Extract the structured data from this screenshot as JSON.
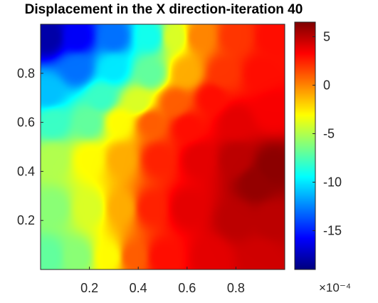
{
  "chart_data": {
    "type": "heatmap",
    "title": "Displacement in the X direction-iteration 40",
    "xlabel": "",
    "ylabel": "",
    "xlim": [
      0,
      1
    ],
    "ylim": [
      0,
      1
    ],
    "x_ticks": [
      "0.2",
      "0.4",
      "0.6",
      "0.8"
    ],
    "y_ticks": [
      "0.2",
      "0.4",
      "0.6",
      "0.8"
    ],
    "colorbar": {
      "colormap": "jet",
      "clim": [
        -19,
        6.5
      ],
      "scale_label": "×10⁻⁴",
      "ticks": [
        "5",
        "0",
        "-5",
        "-10",
        "-15"
      ]
    },
    "field_control_points": [
      {
        "x": 0.03,
        "y": 0.95,
        "v": -18
      },
      {
        "x": 0.15,
        "y": 0.95,
        "v": -16
      },
      {
        "x": 0.3,
        "y": 0.95,
        "v": -13
      },
      {
        "x": 0.45,
        "y": 0.95,
        "v": -9
      },
      {
        "x": 0.55,
        "y": 0.95,
        "v": -4
      },
      {
        "x": 0.65,
        "y": 0.95,
        "v": 0
      },
      {
        "x": 0.8,
        "y": 0.95,
        "v": 2
      },
      {
        "x": 0.95,
        "y": 0.95,
        "v": 3
      },
      {
        "x": 0.15,
        "y": 0.82,
        "v": -13
      },
      {
        "x": 0.3,
        "y": 0.82,
        "v": -10
      },
      {
        "x": 0.45,
        "y": 0.8,
        "v": -7
      },
      {
        "x": 0.6,
        "y": 0.8,
        "v": -1
      },
      {
        "x": 0.75,
        "y": 0.8,
        "v": 2
      },
      {
        "x": 0.9,
        "y": 0.8,
        "v": 3
      },
      {
        "x": 0.03,
        "y": 0.72,
        "v": -11
      },
      {
        "x": 0.25,
        "y": 0.7,
        "v": -8
      },
      {
        "x": 0.4,
        "y": 0.68,
        "v": -4
      },
      {
        "x": 0.55,
        "y": 0.68,
        "v": 1
      },
      {
        "x": 0.7,
        "y": 0.7,
        "v": 3
      },
      {
        "x": 0.05,
        "y": 0.6,
        "v": -8
      },
      {
        "x": 0.2,
        "y": 0.6,
        "v": -7
      },
      {
        "x": 0.32,
        "y": 0.6,
        "v": -3
      },
      {
        "x": 0.45,
        "y": 0.6,
        "v": 1
      },
      {
        "x": 0.6,
        "y": 0.58,
        "v": 3
      },
      {
        "x": 0.8,
        "y": 0.6,
        "v": 4
      },
      {
        "x": 0.95,
        "y": 0.65,
        "v": 3.5
      },
      {
        "x": 0.05,
        "y": 0.45,
        "v": -5
      },
      {
        "x": 0.2,
        "y": 0.45,
        "v": -3
      },
      {
        "x": 0.33,
        "y": 0.45,
        "v": -1
      },
      {
        "x": 0.48,
        "y": 0.45,
        "v": 2.5
      },
      {
        "x": 0.65,
        "y": 0.45,
        "v": 4
      },
      {
        "x": 0.8,
        "y": 0.45,
        "v": 5
      },
      {
        "x": 0.95,
        "y": 0.42,
        "v": 6.2
      },
      {
        "x": 0.88,
        "y": 0.35,
        "v": 6
      },
      {
        "x": 0.05,
        "y": 0.25,
        "v": -6
      },
      {
        "x": 0.2,
        "y": 0.25,
        "v": -4
      },
      {
        "x": 0.33,
        "y": 0.25,
        "v": -1
      },
      {
        "x": 0.45,
        "y": 0.25,
        "v": 2.5
      },
      {
        "x": 0.6,
        "y": 0.25,
        "v": 4
      },
      {
        "x": 0.8,
        "y": 0.2,
        "v": 5
      },
      {
        "x": 0.95,
        "y": 0.2,
        "v": 5
      },
      {
        "x": 0.03,
        "y": 0.05,
        "v": -7
      },
      {
        "x": 0.15,
        "y": 0.05,
        "v": -6
      },
      {
        "x": 0.28,
        "y": 0.05,
        "v": -3
      },
      {
        "x": 0.38,
        "y": 0.05,
        "v": 1
      },
      {
        "x": 0.5,
        "y": 0.05,
        "v": 3
      },
      {
        "x": 0.7,
        "y": 0.05,
        "v": 4
      },
      {
        "x": 0.9,
        "y": 0.05,
        "v": 4.5
      }
    ]
  }
}
